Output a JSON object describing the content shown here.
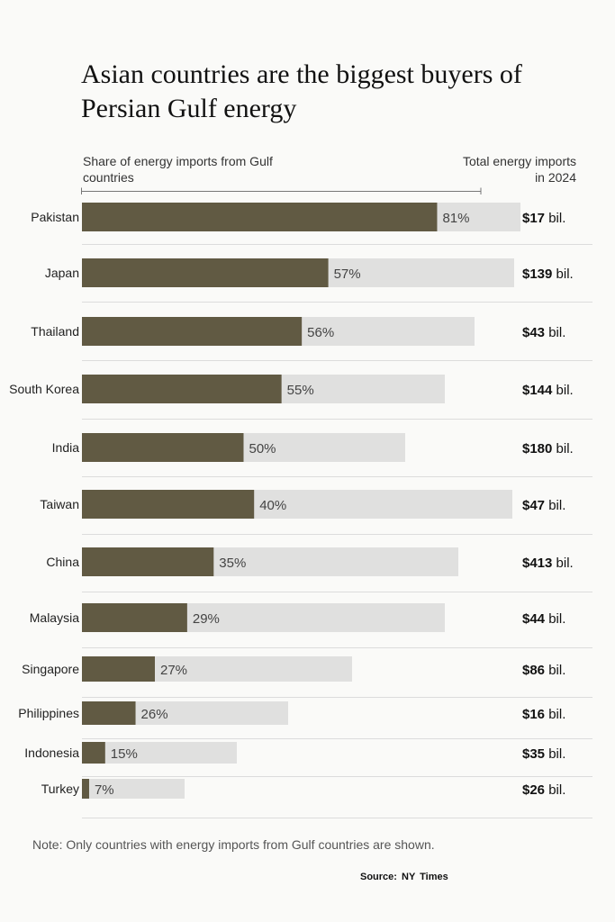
{
  "title": "Asian countries are the biggest buyers of Persian Gulf energy",
  "header_left": "Share of energy imports from Gulf countries",
  "header_right": "Total energy imports in 2024",
  "note": "Note: Only countries with energy imports from Gulf countries are shown.",
  "source": "Source:  NY Times",
  "colors": {
    "share": "#615a43",
    "total": "#e0e0df",
    "divider": "#dcdcdc"
  },
  "chart_data": {
    "type": "bar",
    "title": "Asian countries are the biggest buyers of Persian Gulf energy",
    "xlabel": "Share of energy imports from Gulf countries",
    "ylabel": "",
    "unit_share": "%",
    "categories": [
      "Pakistan",
      "Japan",
      "Thailand",
      "South Korea",
      "India",
      "Taiwan",
      "China",
      "Malaysia",
      "Singapore",
      "Philippines",
      "Indonesia",
      "Turkey"
    ],
    "series": [
      {
        "name": "Share of energy imports from Gulf countries",
        "values": [
          81,
          57,
          56,
          55,
          50,
          40,
          35,
          29,
          27,
          26,
          15,
          7
        ],
        "labels": [
          "81%",
          "57%",
          "56%",
          "55%",
          "50%",
          "40%",
          "35%",
          "29%",
          "27%",
          "26%",
          "15%",
          "7%"
        ]
      },
      {
        "name": "Total energy imports in 2024",
        "values_billion_usd": [
          17,
          139,
          43,
          144,
          180,
          47,
          413,
          44,
          86,
          16,
          35,
          26
        ],
        "labels": [
          "$17 bil.",
          "$139 bil.",
          "$43 bil.",
          "$144 bil.",
          "$180 bil.",
          "$47 bil.",
          "$413 bil.",
          "$44 bil.",
          "$86 bil.",
          "$16 bil.",
          "$35 bil.",
          "$26 bil."
        ]
      }
    ]
  }
}
